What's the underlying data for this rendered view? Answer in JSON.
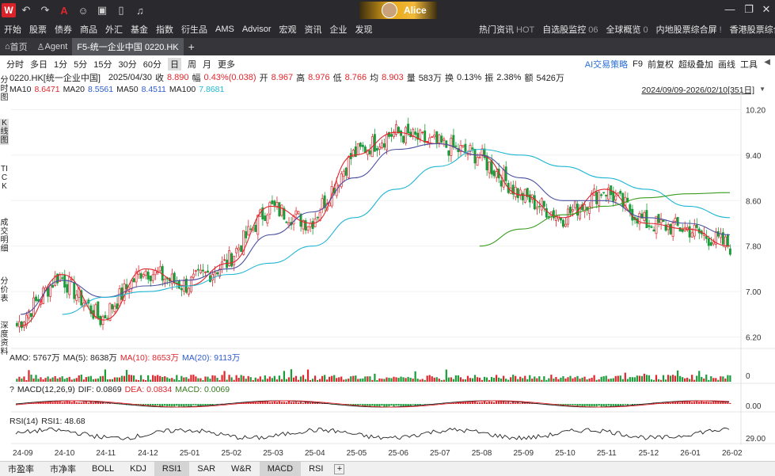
{
  "titlebar": {
    "logo": "W",
    "user": "Alice",
    "icons": [
      "back-icon",
      "forward-icon",
      "font-icon",
      "chat-icon",
      "wifi-icon",
      "phone-icon",
      "bell-icon"
    ]
  },
  "menu": [
    "开始",
    "股票",
    "债券",
    "商品",
    "外汇",
    "基金",
    "指数",
    "衍生品",
    "AMS",
    "Advisor",
    "宏观",
    "资讯",
    "企业",
    "发现"
  ],
  "menu_right": [
    {
      "label": "热门资讯",
      "extra": "HOT"
    },
    {
      "label": "自选股监控",
      "extra": "06"
    },
    {
      "label": "全球概览",
      "extra": "0"
    },
    {
      "label": "内地股票综合屏",
      "extra": "!"
    },
    {
      "label": "香港股票综合屏",
      "extra": "!"
    }
  ],
  "tabs": [
    {
      "label": "首页"
    },
    {
      "label": "Agent"
    },
    {
      "label": "F5-统一企业中国 0220.HK"
    }
  ],
  "periods": [
    "分时",
    "多日",
    "1分",
    "5分",
    "15分",
    "30分",
    "60分",
    "日",
    "周",
    "月",
    "更多"
  ],
  "selected_period": "日",
  "right_tools": [
    "AI交易策略",
    "F9",
    "前复权",
    "超级叠加",
    "画线",
    "工具"
  ],
  "left_side": [
    "分时图",
    "K线图",
    "TICK",
    "成交明细",
    "分价表",
    "深度资料"
  ],
  "quote": {
    "code": "0220.HK[统一企业中国]",
    "date": "2025/04/30",
    "close_label": "收",
    "close": "8.890",
    "chg_label": "幅",
    "chg": "0.43%(0.038)",
    "open_label": "开",
    "open": "8.967",
    "high_label": "高",
    "high": "8.976",
    "low_label": "低",
    "low": "8.766",
    "avg_label": "均",
    "avg": "8.903",
    "vol_label": "量",
    "vol": "583万",
    "turn_label": "换",
    "turn": "0.13%",
    "amp_label": "振",
    "amp": "2.38%",
    "amt_label": "额",
    "amt": "5426万"
  },
  "ma": {
    "ma10_label": "MA10",
    "ma10": "8.6471",
    "ma20_label": "MA20",
    "ma20": "8.5561",
    "ma50_label": "MA50",
    "ma50": "8.4511",
    "ma100_label": "MA100",
    "ma100": "7.8681"
  },
  "range": "2024/09/09-2026/02/10[351日]",
  "amo": {
    "label": "AMO: 5767万",
    "ma5": "MA(5): 8638万",
    "ma10": "MA(10): 8653万",
    "ma20": "MA(20): 9113万"
  },
  "macd": {
    "q": "?",
    "label": "MACD(12,26,9)",
    "dif": "DIF: 0.0869",
    "dea": "DEA: 0.0834",
    "macd": "MACD: 0.0069"
  },
  "rsi": {
    "label": "RSI(14)",
    "rsi1": "RSI1: 48.68"
  },
  "bottom_tabs": [
    "市盈率",
    "市净率",
    "BOLL",
    "KDJ",
    "RSI1",
    "SAR",
    "W&R",
    "MACD",
    "RSI"
  ],
  "selected_bottom": [
    "RSI1",
    "MACD"
  ],
  "colors": {
    "up": "#e0262d",
    "down": "#1a9c3a",
    "ma10": "#e0262d",
    "ma20": "#2d5bd1",
    "ma50": "#1fb6d4",
    "ma100": "#3a9c20"
  },
  "chart_data": {
    "type": "candlestick",
    "y_ticks": [
      "10.20",
      "9.40",
      "8.60",
      "7.80",
      "7.00",
      "6.20"
    ],
    "y_range": [
      6.0,
      10.4
    ],
    "x_ticks": [
      "24-09",
      "24-10",
      "24-11",
      "24-12",
      "25-01",
      "25-02",
      "25-03",
      "25-04",
      "25-05",
      "25-06",
      "25-07",
      "25-08",
      "25-09",
      "25-10",
      "25-11",
      "25-12",
      "26-01",
      "26-02"
    ],
    "amo_tick": "0",
    "macd_tick": "0.00",
    "rsi_tick": "29.00",
    "monthly_close": [
      6.4,
      7.3,
      6.5,
      7.4,
      7.1,
      7.5,
      8.5,
      8.2,
      9.4,
      9.8,
      9.6,
      9.4,
      8.7,
      8.3,
      8.8,
      8.2,
      8.1,
      7.8
    ],
    "ma20_curve": [
      6.6,
      7.2,
      6.9,
      7.1,
      7.2,
      7.4,
      8.0,
      8.4,
      9.0,
      9.5,
      9.6,
      9.4,
      9.0,
      8.6,
      8.6,
      8.3,
      8.2,
      8.0
    ],
    "ma50_curve": [
      null,
      6.6,
      6.9,
      7.0,
      7.1,
      7.3,
      7.5,
      7.8,
      8.3,
      8.8,
      9.2,
      9.5,
      9.4,
      9.2,
      9.0,
      8.8,
      8.5,
      8.3
    ],
    "ma100_curve": [
      null,
      null,
      null,
      null,
      null,
      null,
      null,
      null,
      null,
      null,
      null,
      7.8,
      8.1,
      8.35,
      8.5,
      8.65,
      8.72,
      8.74
    ]
  }
}
